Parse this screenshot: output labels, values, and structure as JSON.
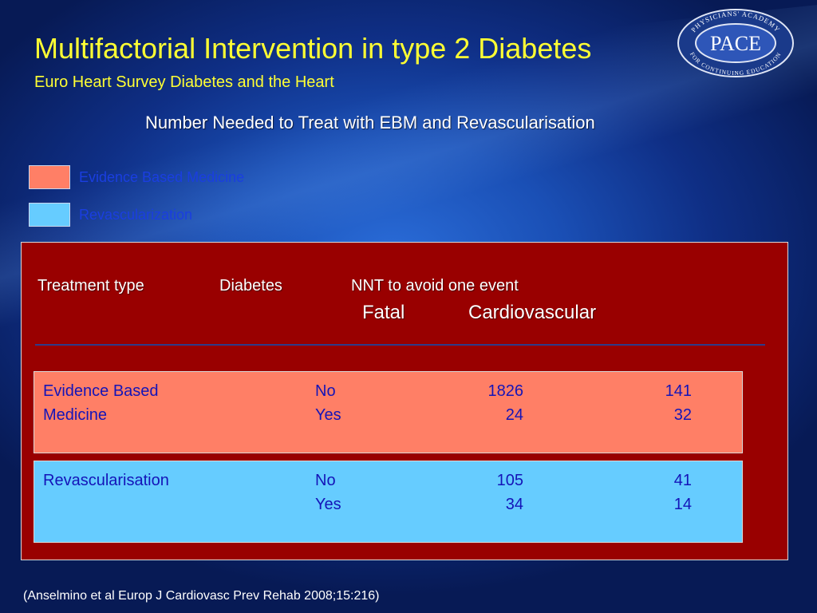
{
  "slide": {
    "title": "Multifactorial Intervention in type 2 Diabetes",
    "subtitle": "Euro Heart Survey Diabetes and the Heart",
    "heading": "Number Needed to Treat with EBM and Revascularisation",
    "citation": "(Anselmino et al Europ J Cardiovasc Prev Rehab 2008;15:216)"
  },
  "logo": {
    "top_text": "PHYSICIANS' ACADEMY",
    "main_text": "PACE",
    "bottom_text": "FOR CONTINUING EDUCATION",
    "ring_color": "#1a3a8a",
    "accent_color": "#e0e6f5"
  },
  "legend": {
    "items": [
      {
        "label": "Evidence Based Medicine",
        "color": "#ff7f66"
      },
      {
        "label": "Revascularization",
        "color": "#66ccff"
      }
    ]
  },
  "table": {
    "headers": {
      "treatment_type": "Treatment type",
      "diabetes": "Diabetes",
      "nnt": "NNT to avoid one event",
      "fatal": "Fatal",
      "cardiovascular": "Cardiovascular"
    },
    "groups": [
      {
        "type_line1": "Evidence Based",
        "type_line2": "Medicine",
        "rows": [
          {
            "diabetes": "No",
            "fatal": "1826",
            "cardiovascular": "141"
          },
          {
            "diabetes": "Yes",
            "fatal": "24",
            "cardiovascular": "32"
          }
        ]
      },
      {
        "type_line1": "Revascularisation",
        "type_line2": "",
        "rows": [
          {
            "diabetes": "No",
            "fatal": "105",
            "cardiovascular": "41"
          },
          {
            "diabetes": "Yes",
            "fatal": "34",
            "cardiovascular": "14"
          }
        ]
      }
    ]
  },
  "colors": {
    "panel_background": "#990000",
    "title_color": "#ffff33",
    "table_text": "#1414b8",
    "legend_text": "#1a3ee0"
  }
}
